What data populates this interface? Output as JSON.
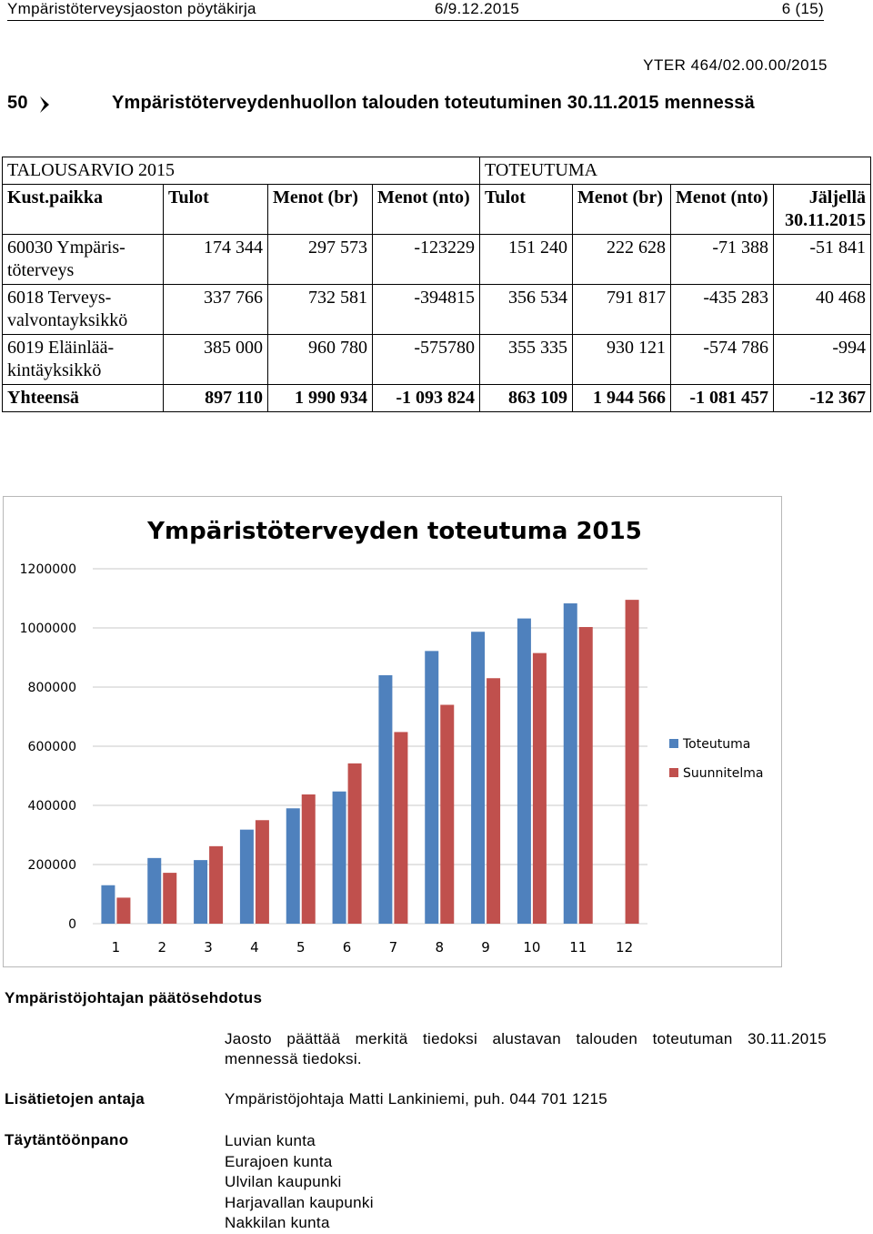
{
  "header": {
    "doc_title": "Ympäristöterveysjaoston pöytäkirja",
    "date": "6/9.12.2015",
    "page": "6 (15)"
  },
  "reference": "YTER 464/02.00.00/2015",
  "section": {
    "number": "50",
    "title": "Ympäristöterveydenhuollon talouden toteutuminen 30.11.2015 mennessä"
  },
  "table": {
    "group_budget": "TALOUSARVIO 2015",
    "group_actual": "TOTEUTUMA",
    "headers": [
      "Kust.paikka",
      "Tulot",
      "Menot (br)",
      "Menot (nto)",
      "Tulot",
      "Menot (br)",
      "Menot (nto)",
      "Jäljellä 30.11.2015"
    ],
    "rows": [
      [
        "60030 Ympäris-töterveys",
        "174 344",
        "297 573",
        "-123229",
        "151 240",
        "222 628",
        "-71 388",
        "-51 841"
      ],
      [
        "6018 Terveys-valvontayksikkö",
        "337 766",
        "732 581",
        "-394815",
        "356 534",
        "791 817",
        "-435 283",
        "40 468"
      ],
      [
        "6019 Eläinlää-kintäyksikkö",
        "385 000",
        "960 780",
        "-575780",
        "355 335",
        "930 121",
        "-574 786",
        "-994"
      ]
    ],
    "total": [
      "Yhteensä",
      "897 110",
      "1 990 934",
      "-1 093 824",
      "863 109",
      "1 944 566",
      "-1 081 457",
      "-12 367"
    ]
  },
  "chart_data": {
    "type": "bar",
    "title": "Ympäristöterveyden toteutuma 2015",
    "categories": [
      "1",
      "2",
      "3",
      "4",
      "5",
      "6",
      "7",
      "8",
      "9",
      "10",
      "11",
      "12"
    ],
    "series": [
      {
        "name": "Toteutuma",
        "color": "#4f81bd",
        "values": [
          130000,
          222000,
          215000,
          318000,
          390000,
          447000,
          840000,
          922000,
          987000,
          1032000,
          1083000,
          null
        ]
      },
      {
        "name": "Suunnitelma",
        "color": "#c0504d",
        "values": [
          88000,
          172000,
          262000,
          350000,
          437000,
          542000,
          648000,
          740000,
          830000,
          915000,
          1003000,
          1095000
        ]
      }
    ],
    "yticks": [
      "0",
      "200000",
      "400000",
      "600000",
      "800000",
      "1000000",
      "1200000"
    ],
    "ylim": [
      0,
      1200000
    ],
    "grid": true,
    "legend": "right"
  },
  "proposal": {
    "label": "Ympäristöjohtajan päätösehdotus",
    "text": "Jaosto päättää merkitä tiedoksi alustavan talouden toteutuman 30.11.2015 mennessä tiedoksi."
  },
  "contact": {
    "label": "Lisätietojen antaja",
    "value": "Ympäristöjohtaja Matti Lankiniemi, puh. 044 701 1215"
  },
  "execution": {
    "label": "Täytäntöönpano",
    "items": [
      "Luvian kunta",
      "Eurajoen kunta",
      "Ulvilan kaupunki",
      "Harjavallan kaupunki",
      "Nakkilan kunta"
    ]
  }
}
